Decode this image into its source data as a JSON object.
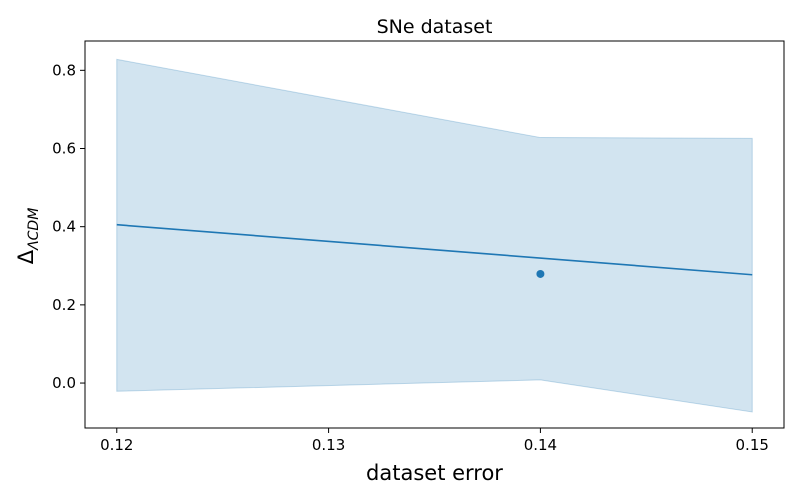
{
  "chart_data": {
    "type": "line",
    "title": "SNe dataset",
    "xlabel": "dataset error",
    "ylabel_main": "Δ",
    "ylabel_sub": "ΛCDM",
    "xlim": [
      0.1185,
      0.1515
    ],
    "ylim": [
      -0.115,
      0.875
    ],
    "xticks": [
      0.12,
      0.13,
      0.14,
      0.15
    ],
    "xtick_labels": [
      "0.12",
      "0.13",
      "0.14",
      "0.15"
    ],
    "yticks": [
      0.0,
      0.2,
      0.4,
      0.6,
      0.8
    ],
    "ytick_labels": [
      "0.0",
      "0.2",
      "0.4",
      "0.6",
      "0.8"
    ],
    "grid": false,
    "series": [
      {
        "kind": "line",
        "x": [
          0.12,
          0.15
        ],
        "y": [
          0.405,
          0.277
        ],
        "color": "#1f77b4"
      },
      {
        "kind": "band",
        "x": [
          0.12,
          0.14,
          0.15
        ],
        "upper": [
          0.828,
          0.628,
          0.626
        ],
        "lower": [
          -0.021,
          0.008,
          -0.074
        ],
        "color": "#1f77b4",
        "opacity": 0.2
      },
      {
        "kind": "scatter",
        "x": [
          0.14
        ],
        "y": [
          0.279
        ],
        "color": "#1f77b4"
      }
    ]
  }
}
